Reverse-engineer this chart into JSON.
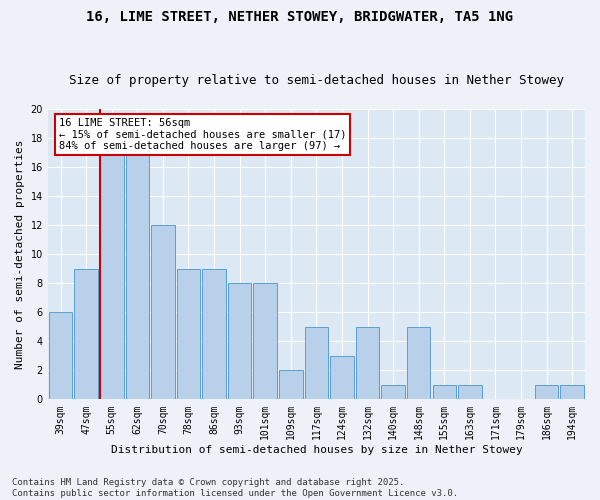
{
  "title": "16, LIME STREET, NETHER STOWEY, BRIDGWATER, TA5 1NG",
  "subtitle": "Size of property relative to semi-detached houses in Nether Stowey",
  "xlabel": "Distribution of semi-detached houses by size in Nether Stowey",
  "ylabel": "Number of semi-detached properties",
  "categories": [
    "39sqm",
    "47sqm",
    "55sqm",
    "62sqm",
    "70sqm",
    "78sqm",
    "86sqm",
    "93sqm",
    "101sqm",
    "109sqm",
    "117sqm",
    "124sqm",
    "132sqm",
    "140sqm",
    "148sqm",
    "155sqm",
    "163sqm",
    "171sqm",
    "179sqm",
    "186sqm",
    "194sqm"
  ],
  "values": [
    6,
    9,
    17,
    17,
    12,
    9,
    9,
    8,
    8,
    2,
    5,
    3,
    5,
    1,
    5,
    1,
    1,
    0,
    0,
    1,
    1
  ],
  "bar_color": "#b8d0ea",
  "bar_edge_color": "#5a9fd4",
  "annotation_title": "16 LIME STREET: 56sqm",
  "annotation_line1": "← 15% of semi-detached houses are smaller (17)",
  "annotation_line2": "84% of semi-detached houses are larger (97) →",
  "annotation_box_facecolor": "#ffffff",
  "annotation_box_edgecolor": "#cc0000",
  "highlight_line_color": "#cc0000",
  "highlight_line_index": 2,
  "ylim": [
    0,
    20
  ],
  "yticks": [
    0,
    2,
    4,
    6,
    8,
    10,
    12,
    14,
    16,
    18,
    20
  ],
  "plot_bg_color": "#dde8f5",
  "fig_bg_color": "#eef2f8",
  "grid_color": "#ffffff",
  "footer": "Contains HM Land Registry data © Crown copyright and database right 2025.\nContains public sector information licensed under the Open Government Licence v3.0.",
  "title_fontsize": 10,
  "subtitle_fontsize": 9,
  "axis_label_fontsize": 8,
  "tick_fontsize": 7,
  "annotation_fontsize": 7.5,
  "footer_fontsize": 6.5
}
